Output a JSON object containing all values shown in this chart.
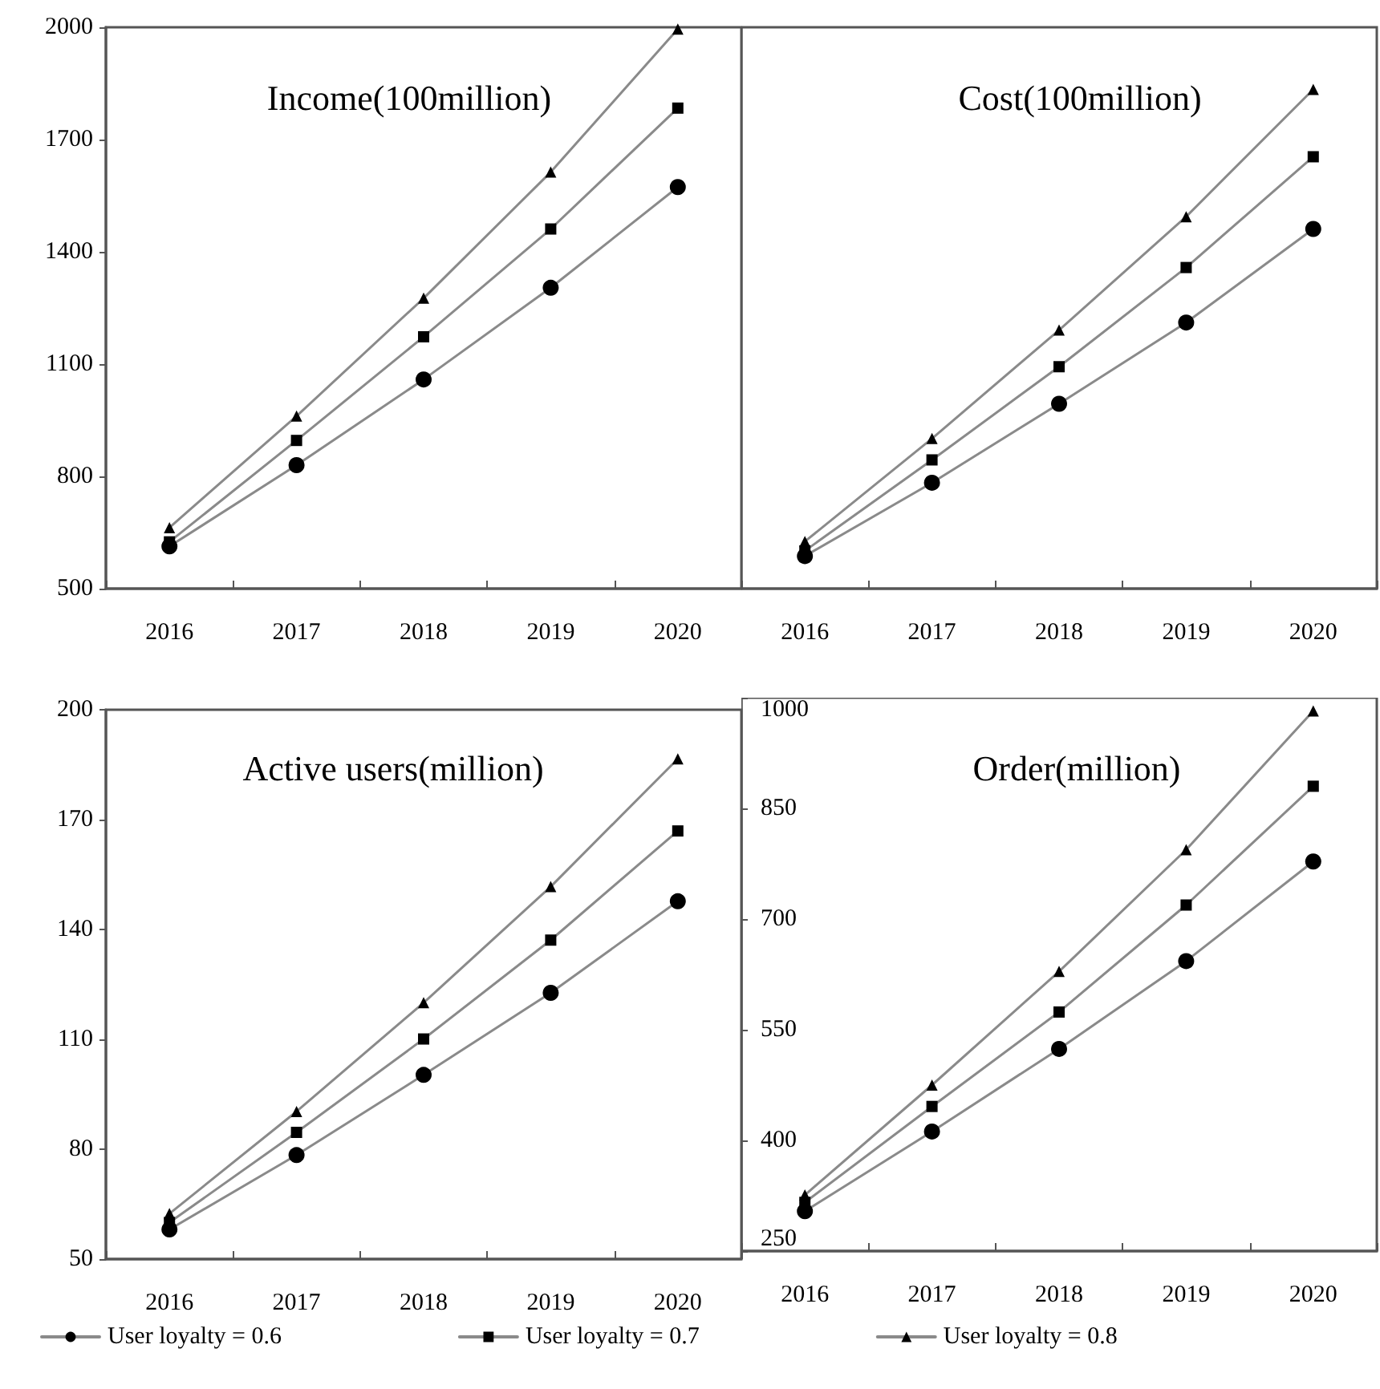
{
  "chart_data": [
    {
      "type": "line",
      "title": "Income(100million)",
      "categories": [
        "2016",
        "2017",
        "2018",
        "2019",
        "2020"
      ],
      "ylim": [
        500,
        2000
      ],
      "yticks": [
        500,
        800,
        1100,
        1400,
        1700,
        2000
      ],
      "series": [
        {
          "color": "#000000",
          "marker": "circle",
          "values": [
            613,
            830,
            1059,
            1304,
            1573
          ]
        },
        {
          "color": "#000000",
          "marker": "square",
          "values": [
            625,
            896,
            1173,
            1461,
            1784
          ]
        },
        {
          "color": "#000000",
          "marker": "triangle",
          "values": [
            663,
            961,
            1276,
            1613,
            1995
          ]
        }
      ]
    },
    {
      "type": "line",
      "title": "Cost(100million)",
      "categories": [
        "2016",
        "2017",
        "2018",
        "2019",
        "2020"
      ],
      "ylim": [
        500,
        2000
      ],
      "yticks": [
        500,
        800,
        1100,
        1400,
        1700,
        2000
      ],
      "tick_labels": "x",
      "series": [
        {
          "color": "#000000",
          "marker": "circle",
          "values": [
            587,
            783,
            994,
            1211,
            1461
          ]
        },
        {
          "color": "#000000",
          "marker": "square",
          "values": [
            601,
            844,
            1093,
            1358,
            1654
          ]
        },
        {
          "color": "#000000",
          "marker": "triangle",
          "values": [
            626,
            901,
            1191,
            1494,
            1834
          ]
        }
      ]
    },
    {
      "type": "line",
      "title": "Active users(million)",
      "categories": [
        "2016",
        "2017",
        "2018",
        "2019",
        "2020"
      ],
      "ylim": [
        50,
        200
      ],
      "yticks": [
        50,
        80,
        110,
        140,
        170,
        200
      ],
      "legend": "bottom",
      "series": [
        {
          "name": "User loyalty = 0.6",
          "color": "#000000",
          "marker": "circle",
          "values": [
            58.1,
            78.4,
            100.3,
            122.7,
            147.7
          ]
        },
        {
          "name": "User loyalty = 0.7",
          "color": "#000000",
          "marker": "square",
          "values": [
            60,
            84.6,
            110.1,
            137.1,
            166.9
          ]
        },
        {
          "name": "User loyalty = 0.8",
          "color": "#000000",
          "marker": "triangle",
          "values": [
            62.4,
            90.3,
            120,
            151.7,
            186.6
          ]
        }
      ]
    },
    {
      "type": "line",
      "title": "Order(million)",
      "categories": [
        "2016",
        "2017",
        "2018",
        "2019",
        "2020"
      ],
      "ylim": [
        250,
        1000
      ],
      "yticks": [
        250,
        400,
        550,
        700,
        850,
        1000
      ],
      "series": [
        {
          "color": "#000000",
          "marker": "circle",
          "values": [
            304,
            412,
            524,
            643,
            778
          ]
        },
        {
          "color": "#000000",
          "marker": "square",
          "values": [
            316,
            446,
            574,
            719,
            880
          ]
        },
        {
          "color": "#000000",
          "marker": "triangle",
          "values": [
            326,
            475,
            629,
            794,
            982
          ]
        }
      ]
    }
  ]
}
